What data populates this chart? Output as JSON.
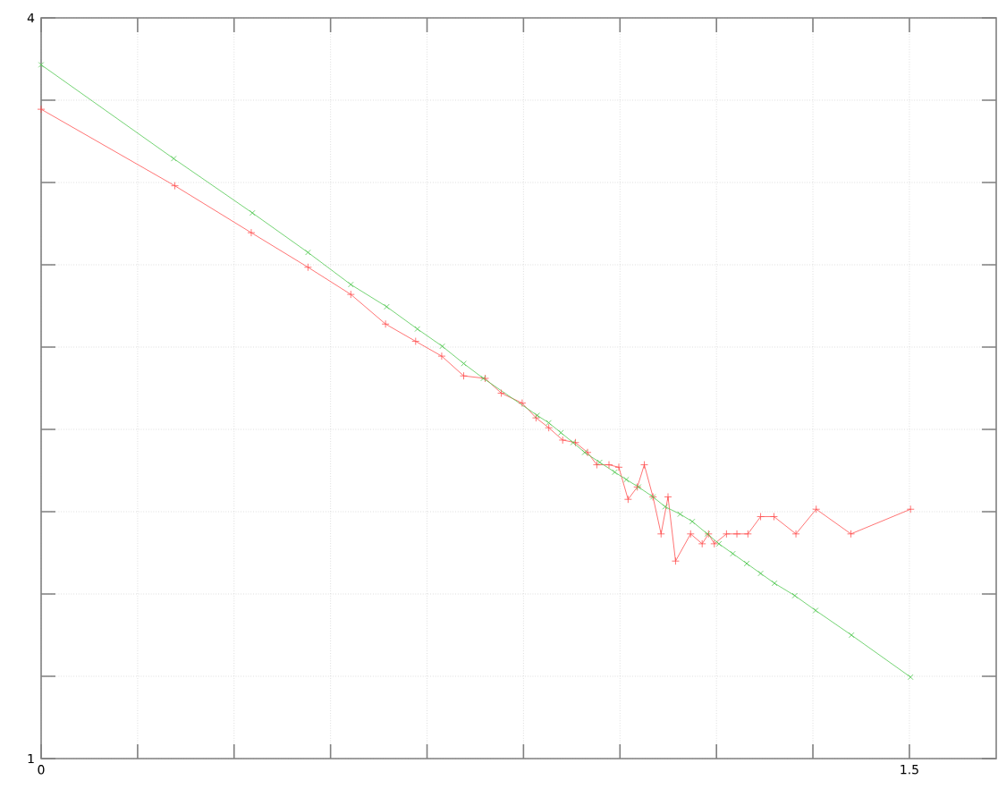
{
  "chart_data": {
    "type": "line",
    "xlim": [
      0,
      1.65
    ],
    "ylim": [
      1,
      4
    ],
    "grid": true,
    "line_style": "solid",
    "xticks": [
      0,
      {
        "value": 0.1667,
        "label": null
      },
      {
        "value": 0.3333,
        "label": null
      },
      {
        "value": 0.5,
        "label": null
      },
      {
        "value": 0.6667,
        "label": null
      },
      {
        "value": 0.8333,
        "label": null
      },
      {
        "value": 1,
        "label": null
      },
      {
        "value": 1.1667,
        "label": null
      },
      {
        "value": 1.3333,
        "label": null
      },
      1.5
    ],
    "yticks": [
      1,
      {
        "value": 1.3333,
        "label": null
      },
      {
        "value": 1.6667,
        "label": null
      },
      {
        "value": 2,
        "label": null
      },
      {
        "value": 2.3333,
        "label": null
      },
      {
        "value": 2.6667,
        "label": null
      },
      {
        "value": 3,
        "label": null
      },
      {
        "value": 3.3333,
        "label": null
      },
      {
        "value": 3.6667,
        "label": null
      },
      4
    ],
    "series": [
      {
        "color": "#ff5050",
        "marker": "cross",
        "x": [
          0,
          0.231,
          0.363,
          0.461,
          0.535,
          0.595,
          0.647,
          0.692,
          0.73,
          0.767,
          0.795,
          0.831,
          0.855,
          0.877,
          0.901,
          0.923,
          0.944,
          0.96,
          0.981,
          0.998,
          1.014,
          1.03,
          1.042,
          1.057,
          1.071,
          1.083,
          1.096,
          1.122,
          1.142,
          1.153,
          1.163,
          1.184,
          1.202,
          1.221,
          1.243,
          1.266,
          1.304,
          1.339,
          1.399,
          1.502
        ],
        "values": [
          3.63,
          3.32,
          3.13,
          2.99,
          2.88,
          2.76,
          2.69,
          2.63,
          2.55,
          2.54,
          2.48,
          2.44,
          2.38,
          2.34,
          2.29,
          2.28,
          2.24,
          2.19,
          2.19,
          2.18,
          2.05,
          2.1,
          2.19,
          2.06,
          1.91,
          2.06,
          1.8,
          1.91,
          1.87,
          1.91,
          1.87,
          1.91,
          1.91,
          1.91,
          1.98,
          1.98,
          1.91,
          2.01,
          1.91,
          2.01
        ]
      },
      {
        "color": "#50c850",
        "marker": "cross",
        "x": [
          0,
          0.229,
          0.365,
          0.461,
          0.535,
          0.597,
          0.65,
          0.693,
          0.73,
          0.764,
          0.857,
          0.877,
          0.898,
          0.919,
          0.939,
          0.965,
          0.991,
          1.011,
          1.032,
          1.057,
          1.078,
          1.104,
          1.125,
          1.151,
          1.171,
          1.195,
          1.219,
          1.243,
          1.267,
          1.302,
          1.338,
          1.4,
          1.502
        ],
        "values": [
          3.81,
          3.43,
          3.21,
          3.05,
          2.92,
          2.83,
          2.74,
          2.67,
          2.6,
          2.54,
          2.39,
          2.36,
          2.32,
          2.28,
          2.24,
          2.2,
          2.16,
          2.13,
          2.1,
          2.06,
          2.02,
          1.99,
          1.96,
          1.91,
          1.87,
          1.83,
          1.79,
          1.75,
          1.71,
          1.66,
          1.6,
          1.5,
          1.33
        ]
      }
    ]
  }
}
